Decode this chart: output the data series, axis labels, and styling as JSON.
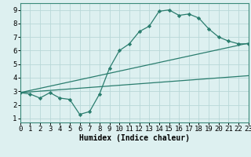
{
  "line1": {
    "x": [
      0,
      1,
      2,
      3,
      4,
      5,
      6,
      7,
      8,
      9,
      10,
      11,
      12,
      13,
      14,
      15,
      16,
      17,
      18,
      19,
      20,
      21,
      22,
      23
    ],
    "y": [
      2.9,
      2.8,
      2.5,
      2.9,
      2.5,
      2.4,
      1.3,
      1.5,
      2.8,
      4.7,
      6.0,
      6.5,
      7.4,
      7.8,
      8.9,
      9.0,
      8.6,
      8.7,
      8.4,
      7.6,
      7.0,
      6.7,
      6.5,
      6.5
    ]
  },
  "line2": {
    "x": [
      0,
      23
    ],
    "y": [
      2.9,
      6.55
    ]
  },
  "line3": {
    "x": [
      0,
      23
    ],
    "y": [
      2.9,
      6.55
    ]
  },
  "line4": {
    "x": [
      0,
      23
    ],
    "y": [
      2.9,
      4.15
    ]
  },
  "bg_color": "#ddf0f0",
  "grid_color": "#b8d8d8",
  "line_color": "#2a7d6e",
  "xlabel": "Humidex (Indice chaleur)",
  "xlim": [
    0,
    23
  ],
  "ylim": [
    0.7,
    9.5
  ],
  "xticks": [
    0,
    1,
    2,
    3,
    4,
    5,
    6,
    7,
    8,
    9,
    10,
    11,
    12,
    13,
    14,
    15,
    16,
    17,
    18,
    19,
    20,
    21,
    22,
    23
  ],
  "yticks": [
    1,
    2,
    3,
    4,
    5,
    6,
    7,
    8,
    9
  ],
  "xlabel_fontsize": 7,
  "tick_fontsize": 6.5
}
